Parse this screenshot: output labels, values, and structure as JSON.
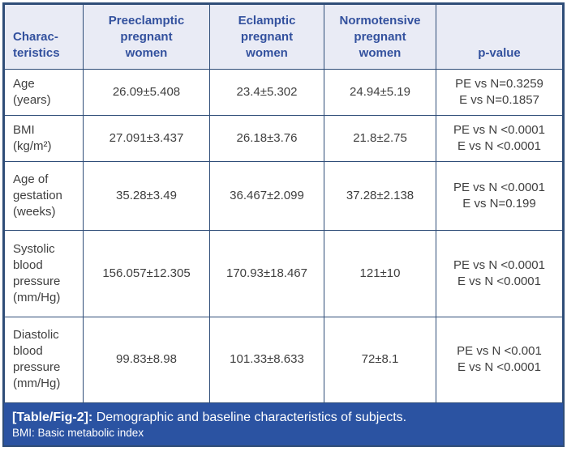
{
  "table": {
    "columns": [
      {
        "label": "Charac-\nteristics"
      },
      {
        "label": "Preeclamptic\npregnant\nwomen"
      },
      {
        "label": "Eclamptic\npregnant\nwomen"
      },
      {
        "label": "Normotensive\npregnant\nwomen"
      },
      {
        "label": "p-value"
      }
    ],
    "rows": [
      {
        "characteristic": "Age\n(years)",
        "preeclamptic": "26.09±5.408",
        "eclamptic": "23.4±5.302",
        "normotensive": "24.94±5.19",
        "p_value": "PE vs N=0.3259\nE vs N=0.1857"
      },
      {
        "characteristic": "BMI\n(kg/m²)",
        "preeclamptic": "27.091±3.437",
        "eclamptic": "26.18±3.76",
        "normotensive": "21.8±2.75",
        "p_value": "PE vs N <0.0001\nE vs N <0.0001"
      },
      {
        "characteristic": "Age of\ngestation\n(weeks)",
        "preeclamptic": "35.28±3.49",
        "eclamptic": "36.467±2.099",
        "normotensive": "37.28±2.138",
        "p_value": "PE vs N <0.0001\nE vs N=0.199"
      },
      {
        "characteristic": "Systolic\nblood\npressure\n(mm/Hg)",
        "preeclamptic": "156.057±12.305",
        "eclamptic": "170.93±18.467",
        "normotensive": "121±10",
        "p_value": "PE vs N <0.0001\nE vs N <0.0001"
      },
      {
        "characteristic": "Diastolic\nblood\npressure\n(mm/Hg)",
        "preeclamptic": "99.83±8.98",
        "eclamptic": "101.33±8.633",
        "normotensive": "72±8.1",
        "p_value": "PE vs N <0.001\nE vs N <0.0001"
      }
    ]
  },
  "caption": {
    "tag": "[Table/Fig-2]:",
    "text": " Demographic and baseline characteristics of subjects.",
    "footnote": "BMI: Basic metabolic index"
  },
  "colors": {
    "header_bg": "#e9ebf5",
    "header_text": "#33519e",
    "border": "#2f4d78",
    "caption_bg": "#2b53a2",
    "caption_text": "#ffffff",
    "body_text": "#3f3f3f"
  }
}
